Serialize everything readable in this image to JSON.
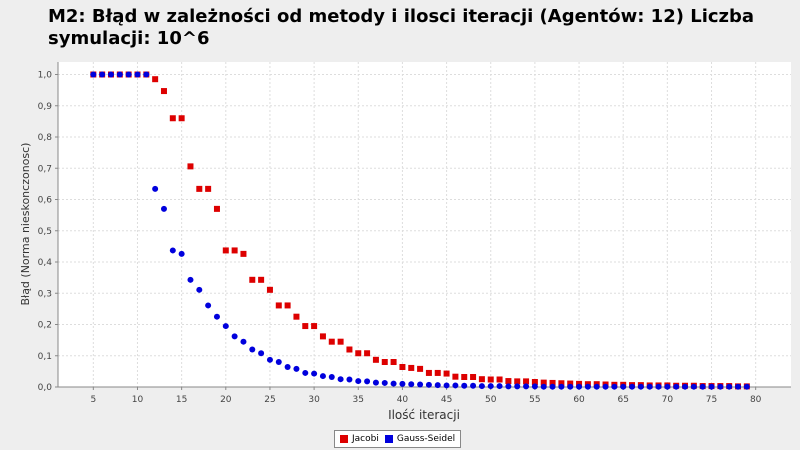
{
  "chart_data": {
    "type": "scatter",
    "title": "M2: Błąd w zależności od metody i ilosci iteracji (Agentów: 12) Liczba symulacji: 10^6",
    "xlabel": "Ilość iteracji",
    "ylabel": "Błąd (Norma nieskonczonosc)",
    "xlim": [
      1,
      84
    ],
    "ylim": [
      0,
      1.04
    ],
    "xticks": [
      "5",
      "10",
      "15",
      "20",
      "25",
      "30",
      "35",
      "40",
      "45",
      "50",
      "55",
      "60",
      "65",
      "70",
      "75",
      "80"
    ],
    "yticks": [
      "0,0",
      "0,1",
      "0,2",
      "0,3",
      "0,4",
      "0,5",
      "0,6",
      "0,7",
      "0,8",
      "0,9",
      "1,0"
    ],
    "grid": true,
    "legend_position": "bottom",
    "series": [
      {
        "name": "Jacobi",
        "color": "#dd0000",
        "marker": "square",
        "x": [
          5,
          6,
          7,
          8,
          9,
          10,
          11,
          12,
          13,
          14,
          15,
          16,
          17,
          18,
          19,
          20,
          21,
          22,
          23,
          24,
          25,
          26,
          27,
          28,
          29,
          30,
          31,
          32,
          33,
          34,
          35,
          36,
          37,
          38,
          39,
          40,
          41,
          42,
          43,
          44,
          45,
          46,
          47,
          48,
          49,
          50,
          51,
          52,
          53,
          54,
          55,
          56,
          57,
          58,
          59,
          60,
          61,
          62,
          63,
          64,
          65,
          66,
          67,
          68,
          69,
          70,
          71,
          72,
          73,
          74,
          75,
          76,
          77,
          78,
          79
        ],
        "y": [
          1.0,
          1.0,
          1.0,
          1.0,
          1.0,
          1.0,
          1.0,
          0.985,
          0.947,
          0.86,
          0.86,
          0.706,
          0.634,
          0.634,
          0.57,
          0.437,
          0.437,
          0.426,
          0.343,
          0.343,
          0.311,
          0.261,
          0.261,
          0.225,
          0.195,
          0.195,
          0.162,
          0.145,
          0.145,
          0.12,
          0.108,
          0.108,
          0.087,
          0.08,
          0.08,
          0.064,
          0.061,
          0.058,
          0.045,
          0.045,
          0.043,
          0.033,
          0.032,
          0.032,
          0.025,
          0.024,
          0.024,
          0.019,
          0.018,
          0.018,
          0.016,
          0.014,
          0.013,
          0.012,
          0.011,
          0.01,
          0.009,
          0.009,
          0.008,
          0.007,
          0.007,
          0.006,
          0.006,
          0.005,
          0.005,
          0.005,
          0.004,
          0.004,
          0.004,
          0.003,
          0.003,
          0.003,
          0.003,
          0.002,
          0.002
        ]
      },
      {
        "name": "Gauss-Seidel",
        "color": "#0000dd",
        "marker": "circle",
        "x": [
          5,
          6,
          7,
          8,
          9,
          10,
          11,
          12,
          13,
          14,
          15,
          16,
          17,
          18,
          19,
          20,
          21,
          22,
          23,
          24,
          25,
          26,
          27,
          28,
          29,
          30,
          31,
          32,
          33,
          34,
          35,
          36,
          37,
          38,
          39,
          40,
          41,
          42,
          43,
          44,
          45,
          46,
          47,
          48,
          49,
          50,
          51,
          52,
          53,
          54,
          55,
          56,
          57,
          58,
          59,
          60,
          61,
          62,
          63,
          64,
          65,
          66,
          67,
          68,
          69,
          70,
          71,
          72,
          73,
          74,
          75,
          76,
          77,
          78,
          79
        ],
        "y": [
          1.0,
          1.0,
          1.0,
          1.0,
          1.0,
          1.0,
          1.0,
          0.634,
          0.57,
          0.437,
          0.426,
          0.343,
          0.311,
          0.261,
          0.225,
          0.195,
          0.162,
          0.145,
          0.12,
          0.108,
          0.087,
          0.08,
          0.064,
          0.058,
          0.045,
          0.043,
          0.035,
          0.032,
          0.025,
          0.024,
          0.019,
          0.018,
          0.014,
          0.013,
          0.011,
          0.01,
          0.009,
          0.008,
          0.007,
          0.006,
          0.005,
          0.005,
          0.004,
          0.004,
          0.003,
          0.003,
          0.003,
          0.002,
          0.002,
          0.002,
          0.002,
          0.001,
          0.001,
          0.001,
          0.001,
          0.001,
          0.001,
          0.001,
          0.001,
          0.001,
          0.001,
          0.001,
          0.001,
          0.001,
          0.001,
          0.001,
          0.001,
          0.001,
          0.001,
          0.001,
          0.001,
          0.001,
          0.001,
          0.001,
          0.001
        ]
      }
    ]
  }
}
